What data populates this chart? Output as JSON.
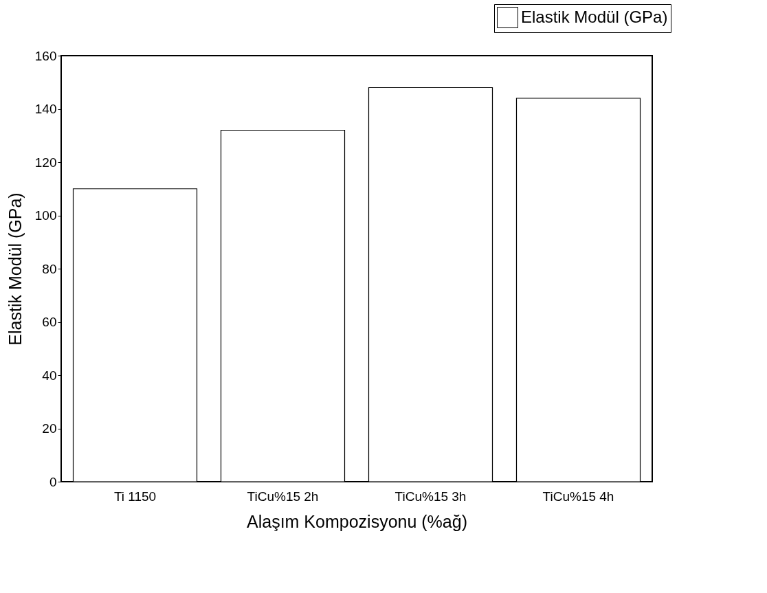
{
  "chart_data": {
    "type": "bar",
    "xlabel": "Alaşım Kompozisyonu (%ağ)",
    "ylabel": "Elastik Modül (GPa)",
    "categories": [
      "Ti 1150",
      "TiCu%15 2h",
      "TiCu%15 3h",
      "TiCu%15 4h"
    ],
    "series": [
      {
        "name": "Elastik Modül (GPa)",
        "color": "#ffffff",
        "values": [
          110,
          132,
          148,
          144
        ]
      }
    ],
    "ylim": [
      0,
      160
    ],
    "yticks": [
      0,
      20,
      40,
      60,
      80,
      100,
      120,
      140,
      160
    ],
    "legend": "top right"
  }
}
